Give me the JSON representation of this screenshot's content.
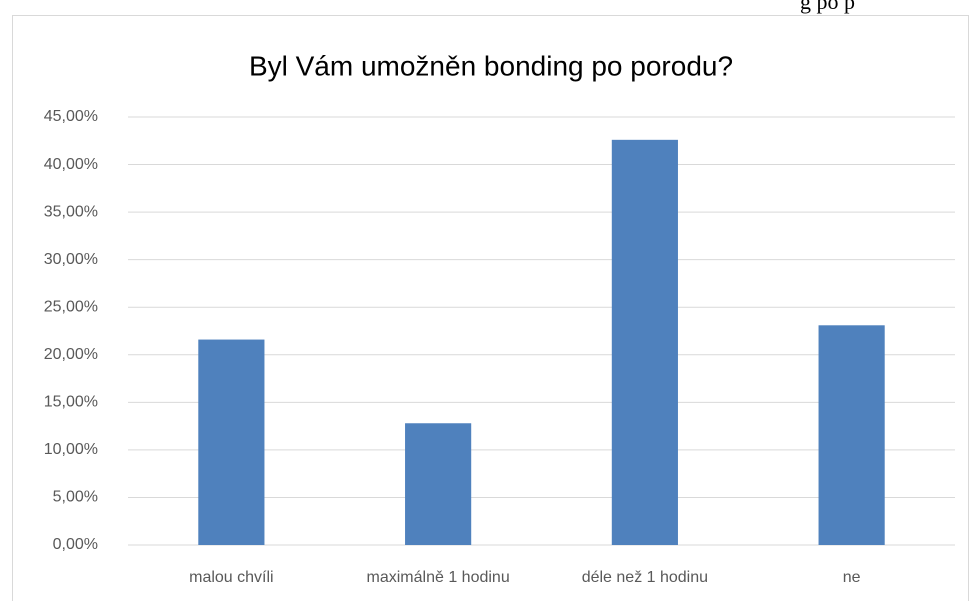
{
  "page_fragment": "g po p",
  "chart_data": {
    "type": "bar",
    "title": "Byl Vám umožněn bonding po porodu?",
    "categories": [
      "malou chvíli",
      "maximálně 1 hodinu",
      "déle než 1 hodinu",
      "ne"
    ],
    "values": [
      21.6,
      12.8,
      42.6,
      23.1
    ],
    "color": "#4f81bd",
    "ylim": [
      0,
      45
    ],
    "yticks": [
      {
        "value": 0,
        "label": "0,00%"
      },
      {
        "value": 5,
        "label": "5,00%"
      },
      {
        "value": 10,
        "label": "10,00%"
      },
      {
        "value": 15,
        "label": "15,00%"
      },
      {
        "value": 20,
        "label": "20,00%"
      },
      {
        "value": 25,
        "label": "25,00%"
      },
      {
        "value": 30,
        "label": "30,00%"
      },
      {
        "value": 35,
        "label": "35,00%"
      },
      {
        "value": 40,
        "label": "40,00%"
      },
      {
        "value": 45,
        "label": "45,00%"
      }
    ],
    "grid": true
  }
}
